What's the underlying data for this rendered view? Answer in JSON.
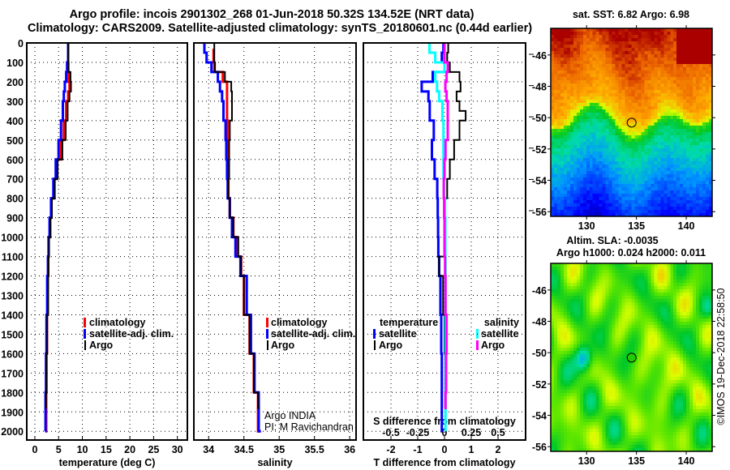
{
  "title": {
    "line1": "Argo profile: incois 2901302_268 01-Jun-2018 50.32S 134.52E (NRT data)",
    "line2": "Climatology: CARS2009. Satellite-adjusted climatology: synTS_20180601.nc (0.44d earlier)"
  },
  "credit": {
    "institution": "Argo INDIA",
    "pi": "PI: M Ravichandran"
  },
  "watermark": "©IMOS 19-Dec-2018 22:58:50",
  "colors": {
    "climatology": "#ff0000",
    "satellite": "#0000ff",
    "argo": "#000000",
    "sal_satellite": "#00ffff",
    "sal_argo": "#ff00ff"
  },
  "chart_data": [
    {
      "type": "line",
      "id": "temperature",
      "xlabel": "temperature (deg C)",
      "ylabel": "",
      "xlim": [
        -1.7,
        32.1
      ],
      "ylim": [
        0,
        2045
      ],
      "y_inverted": true,
      "grid": true,
      "xticks": [
        0,
        5,
        10,
        15,
        20,
        25,
        30
      ],
      "yticks": [
        0,
        100,
        200,
        300,
        400,
        500,
        600,
        700,
        800,
        900,
        1000,
        1100,
        1200,
        1300,
        1400,
        1500,
        1600,
        1700,
        1800,
        1900,
        2000
      ],
      "legend": {
        "placement": "center-bottom",
        "entries": [
          "climatology",
          "satellite-adj. clim.",
          "Argo"
        ]
      },
      "series": [
        {
          "name": "climatology",
          "color": "#ff0000",
          "depth": [
            0,
            50,
            100,
            150,
            200,
            250,
            300,
            400,
            500,
            600,
            700,
            800,
            900,
            1000,
            1100,
            1200,
            1400,
            1600,
            1800,
            2000
          ],
          "values": [
            7.0,
            7.0,
            6.8,
            7.1,
            7.3,
            7.0,
            6.6,
            6.1,
            5.5,
            4.7,
            4.1,
            3.5,
            3.2,
            2.9,
            2.8,
            2.7,
            2.55,
            2.45,
            2.4,
            2.35
          ]
        },
        {
          "name": "satellite-adj. clim.",
          "color": "#0000ff",
          "depth": [
            0,
            50,
            100,
            150,
            200,
            250,
            300,
            400,
            500,
            600,
            700,
            800,
            900,
            1000,
            1100,
            1200,
            1400,
            1600,
            1800,
            2000
          ],
          "values": [
            7.0,
            7.0,
            6.8,
            6.6,
            6.3,
            6.1,
            5.9,
            5.5,
            5.0,
            4.4,
            3.9,
            3.4,
            3.1,
            2.9,
            2.75,
            2.6,
            2.45,
            2.35,
            2.25,
            2.2
          ]
        },
        {
          "name": "Argo",
          "color": "#000000",
          "depth": [
            0,
            50,
            100,
            150,
            200,
            250,
            300,
            400,
            500,
            600,
            700,
            800,
            900,
            1000,
            1100,
            1200,
            1400,
            1600,
            1800,
            1880
          ],
          "values": [
            7.0,
            7.0,
            7.1,
            7.5,
            7.6,
            7.3,
            6.9,
            6.5,
            5.8,
            4.8,
            4.2,
            3.6,
            3.3,
            3.0,
            2.9,
            2.8,
            2.6,
            2.45,
            2.35,
            2.3
          ]
        }
      ]
    },
    {
      "type": "line",
      "id": "salinity",
      "xlabel": "salinity",
      "xlim": [
        33.79,
        36.09
      ],
      "ylim": [
        0,
        2045
      ],
      "y_inverted": true,
      "grid": true,
      "xticks": [
        34,
        34.5,
        35,
        35.5,
        36
      ],
      "legend": {
        "placement": "center-bottom",
        "entries": [
          "climatology",
          "satellite-adj. clim.",
          "Argo"
        ]
      },
      "series": [
        {
          "name": "climatology",
          "color": "#ff0000",
          "depth": [
            30,
            50,
            100,
            150,
            200,
            250,
            300,
            400,
            500,
            600,
            700,
            800,
            900,
            1000,
            1100,
            1200,
            1400,
            1600,
            1800,
            2000
          ],
          "values": [
            34.07,
            34.07,
            34.08,
            34.2,
            34.26,
            34.26,
            34.26,
            34.27,
            34.27,
            34.28,
            34.28,
            34.3,
            34.35,
            34.41,
            34.46,
            34.5,
            34.58,
            34.64,
            34.7,
            34.74
          ]
        },
        {
          "name": "satellite-adj. clim.",
          "color": "#0000ff",
          "depth": [
            0,
            50,
            100,
            150,
            200,
            250,
            300,
            400,
            500,
            600,
            700,
            800,
            900,
            1000,
            1100,
            1200,
            1400,
            1600,
            1800,
            2000
          ],
          "values": [
            33.94,
            33.97,
            34.04,
            34.13,
            34.16,
            34.19,
            34.21,
            34.24,
            34.25,
            34.26,
            34.27,
            34.3,
            34.33,
            34.38,
            34.45,
            34.54,
            34.6,
            34.65,
            34.71,
            34.74
          ]
        },
        {
          "name": "Argo",
          "color": "#000000",
          "depth": [
            0,
            50,
            100,
            150,
            200,
            250,
            300,
            400,
            500,
            600,
            700,
            800,
            900,
            1000,
            1100,
            1200,
            1400,
            1600,
            1800,
            1880
          ],
          "values": [
            34.08,
            34.08,
            34.09,
            34.23,
            34.32,
            34.33,
            34.33,
            34.3,
            34.29,
            34.29,
            34.28,
            34.3,
            34.35,
            34.42,
            34.46,
            34.5,
            34.58,
            34.64,
            34.7,
            34.72
          ]
        }
      ]
    },
    {
      "type": "line",
      "id": "differences",
      "xlabel": "T difference from climatology",
      "xlabel2": "S difference from climatology",
      "xlim": [
        -3.03,
        3.03
      ],
      "xlim2": [
        -0.7575,
        0.7575
      ],
      "ylim": [
        0,
        2045
      ],
      "y_inverted": true,
      "grid": true,
      "xticks": [
        -2,
        -1,
        0,
        1,
        2
      ],
      "xticks2": [
        -0.5,
        -0.25,
        0,
        0.25,
        0.5
      ],
      "xtick2_labels": [
        "-0.5",
        "-0.25",
        "0",
        "0.25",
        "0.5"
      ],
      "legend": {
        "temperature_heading": "temperature",
        "salinity_heading": "salinity",
        "entries": [
          "satellite",
          "Argo"
        ]
      },
      "series": [
        {
          "name": "temperature satellite",
          "axis": "T",
          "color": "#0000ff",
          "depth": [
            0,
            50,
            100,
            150,
            200,
            250,
            300,
            400,
            500,
            600,
            700,
            800,
            900,
            1000,
            1100,
            1200,
            1400,
            1600,
            1800,
            2000
          ],
          "values": [
            -0.04,
            -0.1,
            0.0,
            -0.44,
            -0.85,
            -0.6,
            -0.55,
            -0.4,
            -0.47,
            -0.37,
            -0.27,
            -0.25,
            -0.24,
            -0.23,
            -0.2,
            -0.15,
            -0.12,
            -0.1,
            -0.1,
            -0.08
          ]
        },
        {
          "name": "temperature Argo",
          "axis": "T",
          "color": "#000000",
          "depth": [
            0,
            50,
            100,
            150,
            200,
            250,
            300,
            350,
            400,
            500,
            600,
            700,
            800,
            900,
            1000,
            1100,
            1200,
            1400,
            1600,
            1880
          ],
          "values": [
            0.14,
            0.1,
            0.2,
            0.56,
            0.6,
            0.45,
            0.56,
            0.79,
            0.56,
            0.36,
            0.2,
            0.1,
            0.0,
            0.0,
            0.0,
            -0.2,
            -0.05,
            0.0,
            0.02,
            0.0
          ]
        },
        {
          "name": "salinity satellite",
          "axis": "S",
          "color": "#00ffff",
          "depth": [
            0,
            50,
            100,
            150,
            200,
            250,
            300,
            400,
            500,
            600,
            700,
            800,
            900,
            1000,
            1100,
            1200,
            1400,
            1600,
            1800,
            2000
          ],
          "values": [
            -0.14,
            -0.086,
            0.0,
            -0.086,
            -0.07,
            -0.05,
            -0.02,
            -0.01,
            -0.01,
            -0.01,
            -0.005,
            0.005,
            0.008,
            0.008,
            0.01,
            0.01,
            0.01,
            0.01,
            0.01,
            0.01
          ]
        },
        {
          "name": "salinity Argo",
          "axis": "S",
          "color": "#ff00ff",
          "depth": [
            0,
            50,
            100,
            150,
            200,
            250,
            300,
            400,
            500,
            600,
            700,
            800,
            900,
            1000,
            1100,
            1200,
            1400,
            1600,
            1800,
            1880
          ],
          "values": [
            0.0,
            0.0,
            0.03,
            0.02,
            0.008,
            0.02,
            0.03,
            0.03,
            0.01,
            0.0,
            -0.007,
            -0.003,
            0,
            0,
            0.005,
            0.01,
            0.02,
            0.015,
            0.01,
            0.0
          ]
        }
      ]
    },
    {
      "type": "heatmap",
      "id": "sst-map",
      "title": "sat. SST: 6.82 Argo: 6.98",
      "xlim": [
        126.4,
        142.6
      ],
      "ylim": [
        -56.3,
        -44.3
      ],
      "xticks": [
        130,
        135,
        140
      ],
      "yticks": [
        -46,
        -48,
        -50,
        -52,
        -54,
        -56
      ],
      "marker": {
        "lon": 134.52,
        "lat": -50.32
      }
    },
    {
      "type": "heatmap",
      "id": "sla-map",
      "title": "Altim. SLA: -0.0035",
      "subtitle": "Argo h1000: 0.024 h2000: 0.011",
      "xlim": [
        126.4,
        142.6
      ],
      "ylim": [
        -56.3,
        -44.3
      ],
      "xticks": [
        130,
        135,
        140
      ],
      "yticks": [
        -46,
        -48,
        -50,
        -52,
        -54,
        -56
      ],
      "marker": {
        "lon": 134.52,
        "lat": -50.32
      }
    }
  ]
}
